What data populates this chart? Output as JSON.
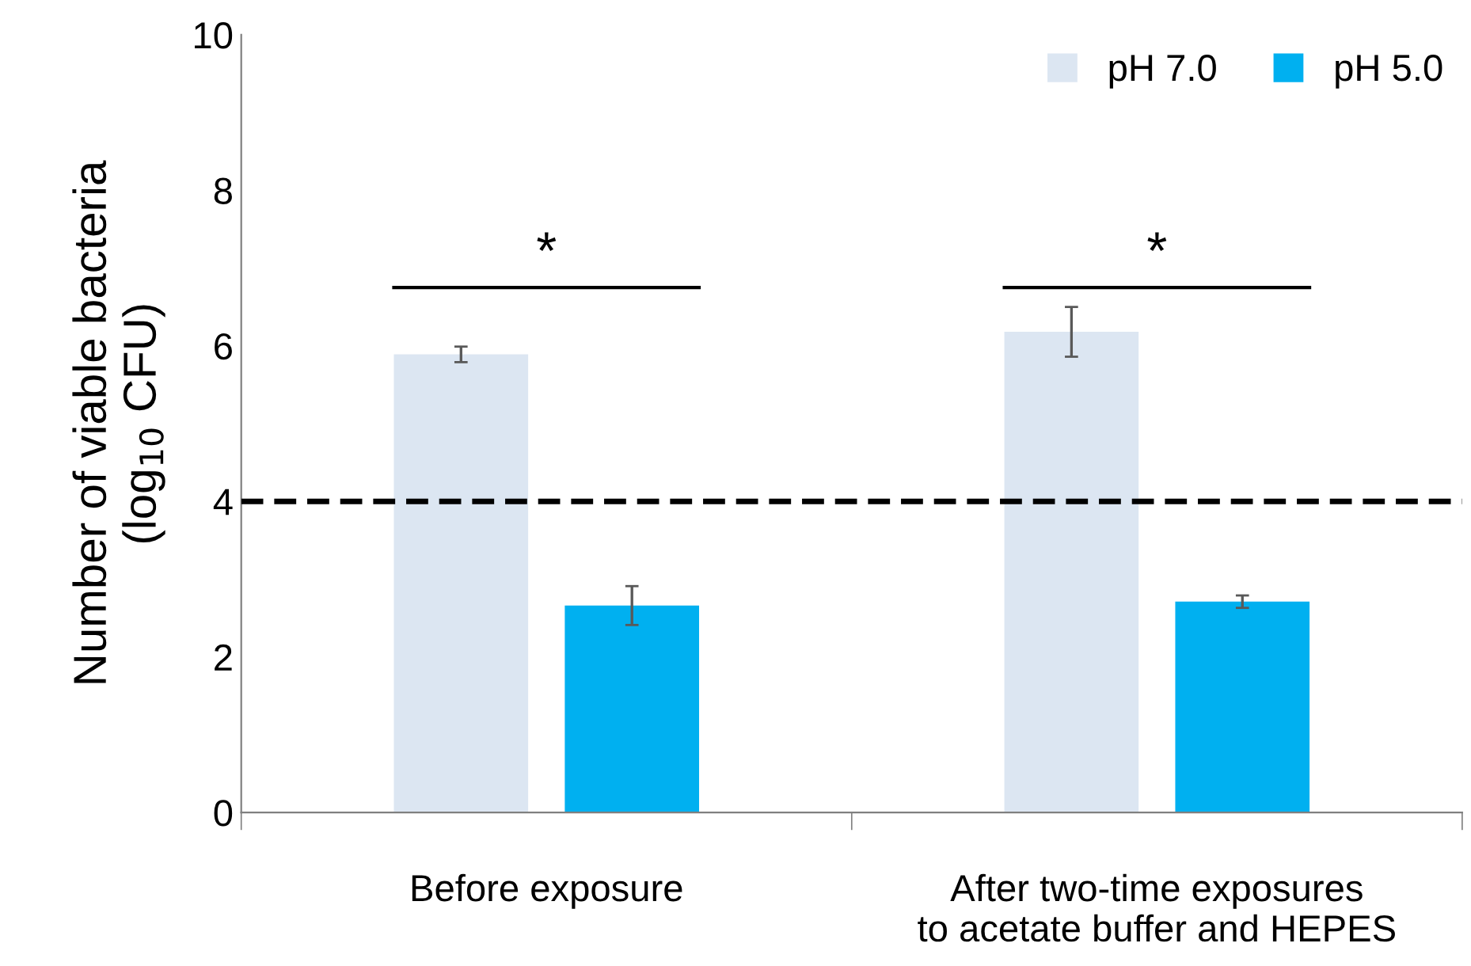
{
  "chart_data": {
    "type": "bar",
    "categories": [
      "Before exposure",
      "After two-time exposures\nto acetate buffer and HEPES"
    ],
    "series": [
      {
        "name": "pH 7.0",
        "color": "#dce6f2",
        "values": [
          5.89,
          6.18
        ],
        "errors": [
          0.1,
          0.32
        ]
      },
      {
        "name": "pH 5.0",
        "color": "#00b0f0",
        "values": [
          2.66,
          2.71
        ],
        "errors": [
          0.25,
          0.08
        ]
      }
    ],
    "ylabel": "Number of viable bacteria\n(log$_{10}$ CFU)",
    "ylim": [
      0,
      10
    ],
    "yticks": [
      0,
      2,
      4,
      6,
      8,
      10
    ],
    "ref_lines": [
      {
        "axis": "y",
        "value": 4,
        "color": "#000000",
        "line_style": "dashed"
      }
    ],
    "annotations": [
      "*",
      "*"
    ],
    "legend": "top right",
    "grid": false
  }
}
